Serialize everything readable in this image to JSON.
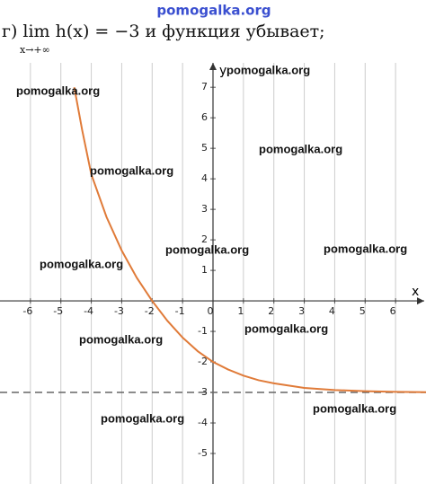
{
  "site_label": "pomogalka.org",
  "header": {
    "text": "г) lim h(x) = −3 и функция убывает;",
    "limit_sub": "x→+∞"
  },
  "chart_data": {
    "type": "line",
    "x_label": "x",
    "y_label": "y",
    "x": [
      -4.56,
      -4.3,
      -4,
      -3.5,
      -3,
      -2.5,
      -2,
      -1.5,
      -1,
      -0.5,
      0,
      0.5,
      1,
      1.5,
      2,
      3,
      4,
      5,
      6,
      7
    ],
    "series": [
      {
        "name": "h(x)",
        "color": "#e07b39",
        "values": [
          7,
          5.6,
          4.15,
          2.75,
          1.65,
          0.75,
          0,
          -0.65,
          -1.2,
          -1.65,
          -2,
          -2.25,
          -2.45,
          -2.6,
          -2.7,
          -2.85,
          -2.92,
          -2.96,
          -2.98,
          -2.99
        ]
      }
    ],
    "asymptote": -3,
    "xlim": [
      -7,
      7
    ],
    "ylim": [
      -6,
      7.8
    ],
    "xticks": [
      -6,
      -5,
      -4,
      -3,
      -2,
      -1,
      0,
      1,
      2,
      3,
      4,
      5,
      6
    ],
    "yticks": [
      -5,
      -4,
      -3,
      -2,
      -1,
      1,
      2,
      3,
      4,
      5,
      6,
      7
    ],
    "grid": true
  },
  "watermarks": [
    "pomogalka.org",
    "pomogalka.org",
    "pomogalka.org",
    "pomogalka.org",
    "pomogalka.org",
    "pomogalka.org",
    "pomogalka.org",
    "pomogalka.org",
    "pomogalka.org",
    "pomogalka.org",
    "pomogalka.org"
  ]
}
